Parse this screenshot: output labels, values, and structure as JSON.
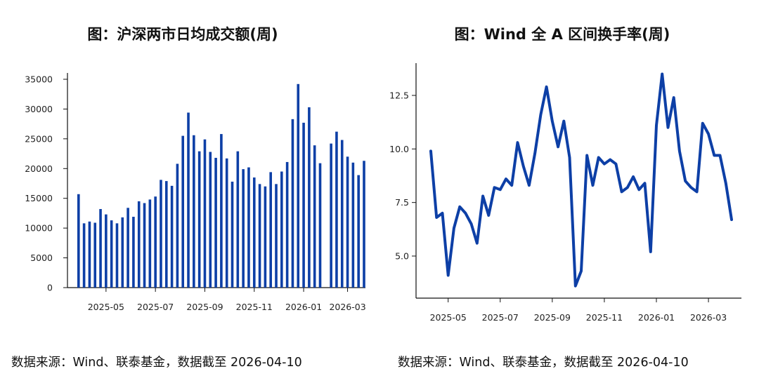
{
  "charts": [
    {
      "title": "图：沪深两市日均成交额(周)",
      "source": "数据来源：Wind、联泰基金，数据截至 2026-04-10"
    },
    {
      "title": "图：Wind 全 A 区间换手率(周)",
      "source": "数据来源：Wind、联泰基金，数据截至 2026-04-10"
    }
  ],
  "chart_data": [
    {
      "type": "bar",
      "title": "图：沪深两市日均成交额(周)",
      "color": "#0d3fa6",
      "ylim": [
        0,
        35000
      ],
      "yticks": [
        0,
        5000,
        10000,
        15000,
        20000,
        25000,
        30000,
        35000
      ],
      "xticks": [
        {
          "label": "2025-05",
          "index": 5
        },
        {
          "label": "2025-07",
          "index": 14
        },
        {
          "label": "2025-09",
          "index": 23
        },
        {
          "label": "2025-11",
          "index": 32
        },
        {
          "label": "2026-01",
          "index": 41
        },
        {
          "label": "2026-03",
          "index": 49
        }
      ],
      "values": [
        15700,
        10800,
        11100,
        10900,
        13200,
        12300,
        11300,
        10800,
        11800,
        13400,
        11900,
        14500,
        14200,
        14800,
        15300,
        18100,
        17900,
        17100,
        20800,
        25500,
        29400,
        25600,
        22900,
        24900,
        22800,
        21800,
        25800,
        21700,
        17800,
        22900,
        19900,
        20200,
        18500,
        17400,
        17000,
        19400,
        17400,
        19500,
        21100,
        28300,
        34200,
        27700,
        30300,
        23900,
        20900,
        null,
        24200,
        26200,
        24800,
        22000,
        21000,
        18900,
        21300
      ],
      "grid": false
    },
    {
      "type": "line",
      "title": "图：Wind 全 A 区间换手率(周)",
      "color": "#0d3fa6",
      "ylim": [
        3.3,
        13.8
      ],
      "yticks": [
        5.0,
        7.5,
        10.0,
        12.5
      ],
      "ytick_labels": [
        "5.0",
        "7.5",
        "10.0",
        "12.5"
      ],
      "xticks": [
        {
          "label": "2025-05",
          "index": 3
        },
        {
          "label": "2025-07",
          "index": 12
        },
        {
          "label": "2025-09",
          "index": 21
        },
        {
          "label": "2025-11",
          "index": 30
        },
        {
          "label": "2026-01",
          "index": 39
        },
        {
          "label": "2026-03",
          "index": 48
        }
      ],
      "values": [
        9.9,
        6.8,
        7.0,
        4.1,
        6.3,
        7.3,
        7.0,
        6.5,
        5.6,
        7.8,
        6.9,
        8.2,
        8.1,
        8.6,
        8.3,
        10.3,
        9.2,
        8.3,
        9.8,
        11.6,
        12.9,
        11.3,
        10.1,
        11.3,
        9.6,
        3.6,
        4.3,
        9.7,
        8.3,
        9.6,
        9.3,
        9.5,
        9.3,
        8.0,
        8.2,
        8.7,
        8.1,
        8.4,
        5.2,
        11.1,
        13.5,
        11.0,
        12.4,
        9.9,
        8.5,
        8.2,
        8.0,
        11.2,
        10.7,
        9.7,
        9.7,
        8.4,
        6.7
      ],
      "grid": false
    }
  ]
}
